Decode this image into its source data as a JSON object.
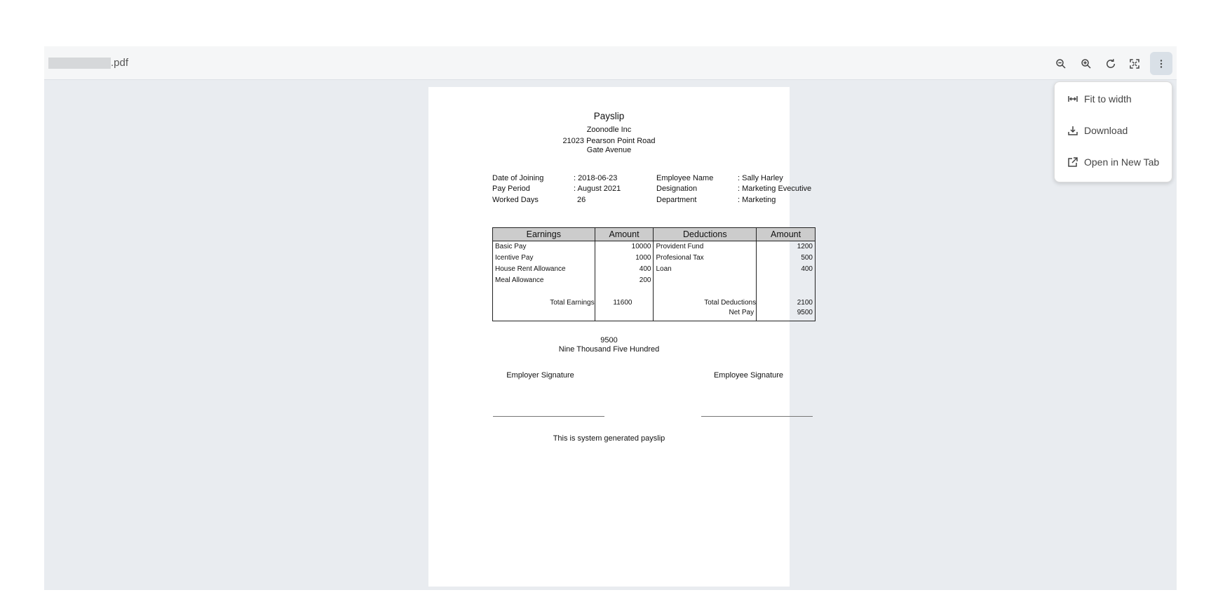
{
  "viewer": {
    "filename_suffix": ".pdf"
  },
  "toolbar": {
    "icons": [
      "zoom-out-icon",
      "zoom-in-icon",
      "rotate-icon",
      "fullscreen-icon",
      "more-vertical-icon"
    ]
  },
  "menu": {
    "items": [
      {
        "label": "Fit to width",
        "icon": "fit-width-icon"
      },
      {
        "label": "Download",
        "icon": "download-icon"
      },
      {
        "label": "Open in New Tab",
        "icon": "open-new-tab-icon"
      }
    ]
  },
  "payslip": {
    "title": "Payslip",
    "company": "Zoonodle  Inc",
    "address1": "21023 Pearson Point Road",
    "address2": "Gate Avenue",
    "info": [
      {
        "label": "Date of Joining",
        "value": ": 2018-06-23",
        "label2": "Employee Name",
        "value2": ": Sally Harley"
      },
      {
        "label": "Pay Period",
        "value": ": August 2021",
        "label2": "Designation",
        "value2": ": Marketing Evecutive"
      },
      {
        "label": "Worked Days",
        "value": "  26",
        "label2": "Department",
        "value2": ": Marketing"
      }
    ],
    "table": {
      "headers": [
        "Earnings",
        "Amount",
        "Deductions",
        "Amount"
      ],
      "rows": [
        [
          "Basic Pay",
          "10000",
          "Provident Fund",
          "1200"
        ],
        [
          "Icentive Pay",
          "1000",
          "Profesional Tax",
          "500"
        ],
        [
          "House Rent Allowance",
          "400",
          "Loan",
          "400"
        ],
        [
          "Meal Allowance",
          "200",
          "",
          ""
        ]
      ],
      "total_earnings_label": "Total Earnings",
      "total_earnings": "11600",
      "total_deductions_label": "Total Deductions",
      "total_deductions": "2100",
      "net_pay_label": "Net Pay",
      "net_pay": "9500"
    },
    "net_amount": "9500",
    "net_words": "Nine Thousand Five Hundred",
    "employer_signature": "Employer Signature",
    "employee_signature": "Employee Signature",
    "footer": "This is system generated payslip"
  }
}
